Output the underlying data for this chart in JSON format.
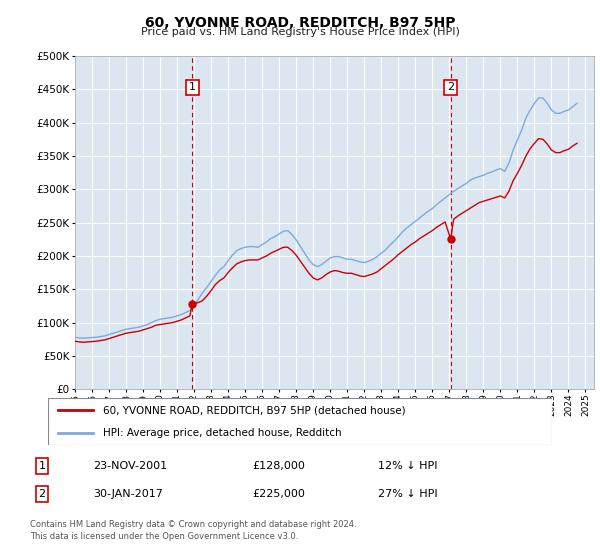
{
  "title": "60, YVONNE ROAD, REDDITCH, B97 5HP",
  "subtitle": "Price paid vs. HM Land Registry's House Price Index (HPI)",
  "ylim": [
    0,
    500000
  ],
  "yticks": [
    0,
    50000,
    100000,
    150000,
    200000,
    250000,
    300000,
    350000,
    400000,
    450000,
    500000
  ],
  "xlim_start": 1995.0,
  "xlim_end": 2025.5,
  "background_color": "#dce6f1",
  "grid_color": "#ffffff",
  "hpi_color": "#7daadc",
  "price_color": "#cc0000",
  "vline_color": "#cc0000",
  "marker1_x": 2001.9,
  "marker1_label": "1",
  "marker1_price": 128000,
  "marker1_date": "23-NOV-2001",
  "marker1_pct": "12% ↓ HPI",
  "marker2_x": 2017.08,
  "marker2_label": "2",
  "marker2_price": 225000,
  "marker2_date": "30-JAN-2017",
  "marker2_pct": "27% ↓ HPI",
  "legend_line1": "60, YVONNE ROAD, REDDITCH, B97 5HP (detached house)",
  "legend_line2": "HPI: Average price, detached house, Redditch",
  "footnote": "Contains HM Land Registry data © Crown copyright and database right 2024.\nThis data is licensed under the Open Government Licence v3.0.",
  "hpi_data_x": [
    1995.0,
    1995.25,
    1995.5,
    1995.75,
    1996.0,
    1996.25,
    1996.5,
    1996.75,
    1997.0,
    1997.25,
    1997.5,
    1997.75,
    1998.0,
    1998.25,
    1998.5,
    1998.75,
    1999.0,
    1999.25,
    1999.5,
    1999.75,
    2000.0,
    2000.25,
    2000.5,
    2000.75,
    2001.0,
    2001.25,
    2001.5,
    2001.75,
    2002.0,
    2002.25,
    2002.5,
    2002.75,
    2003.0,
    2003.25,
    2003.5,
    2003.75,
    2004.0,
    2004.25,
    2004.5,
    2004.75,
    2005.0,
    2005.25,
    2005.5,
    2005.75,
    2006.0,
    2006.25,
    2006.5,
    2006.75,
    2007.0,
    2007.25,
    2007.5,
    2007.75,
    2008.0,
    2008.25,
    2008.5,
    2008.75,
    2009.0,
    2009.25,
    2009.5,
    2009.75,
    2010.0,
    2010.25,
    2010.5,
    2010.75,
    2011.0,
    2011.25,
    2011.5,
    2011.75,
    2012.0,
    2012.25,
    2012.5,
    2012.75,
    2013.0,
    2013.25,
    2013.5,
    2013.75,
    2014.0,
    2014.25,
    2014.5,
    2014.75,
    2015.0,
    2015.25,
    2015.5,
    2015.75,
    2016.0,
    2016.25,
    2016.5,
    2016.75,
    2017.0,
    2017.25,
    2017.5,
    2017.75,
    2018.0,
    2018.25,
    2018.5,
    2018.75,
    2019.0,
    2019.25,
    2019.5,
    2019.75,
    2020.0,
    2020.25,
    2020.5,
    2020.75,
    2021.0,
    2021.25,
    2021.5,
    2021.75,
    2022.0,
    2022.25,
    2022.5,
    2022.75,
    2023.0,
    2023.25,
    2023.5,
    2023.75,
    2024.0,
    2024.25,
    2024.5
  ],
  "hpi_data_y": [
    78000,
    77000,
    76500,
    77000,
    77500,
    78000,
    79000,
    80000,
    82000,
    84000,
    86000,
    88000,
    90000,
    91000,
    92000,
    93000,
    95000,
    97000,
    100000,
    103000,
    105000,
    106000,
    107000,
    108000,
    110000,
    112000,
    115000,
    118000,
    125000,
    135000,
    145000,
    153000,
    162000,
    171000,
    179000,
    184000,
    193000,
    201000,
    208000,
    211000,
    213000,
    214000,
    214000,
    213000,
    217000,
    221000,
    226000,
    229000,
    233000,
    237000,
    238000,
    232000,
    224000,
    214000,
    204000,
    194000,
    187000,
    184000,
    187000,
    192000,
    197000,
    199000,
    199000,
    197000,
    195000,
    195000,
    193000,
    191000,
    190000,
    192000,
    195000,
    199000,
    204000,
    209000,
    216000,
    222000,
    229000,
    236000,
    242000,
    247000,
    252000,
    257000,
    262000,
    267000,
    271000,
    277000,
    282000,
    287000,
    292000,
    297000,
    301000,
    305000,
    309000,
    314000,
    317000,
    319000,
    321000,
    324000,
    326000,
    329000,
    331000,
    327000,
    339000,
    359000,
    374000,
    389000,
    407000,
    419000,
    429000,
    437000,
    437000,
    429000,
    419000,
    414000,
    414000,
    417000,
    419000,
    424000,
    429000
  ],
  "price_data_x": [
    1995.0,
    1995.25,
    1995.5,
    1995.75,
    1996.0,
    1996.25,
    1996.5,
    1996.75,
    1997.0,
    1997.25,
    1997.5,
    1997.75,
    1998.0,
    1998.25,
    1998.5,
    1998.75,
    1999.0,
    1999.25,
    1999.5,
    1999.75,
    2000.0,
    2000.25,
    2000.5,
    2000.75,
    2001.0,
    2001.25,
    2001.5,
    2001.75,
    2001.9,
    2001.9,
    2002.25,
    2002.5,
    2002.75,
    2003.0,
    2003.25,
    2003.5,
    2003.75,
    2004.0,
    2004.25,
    2004.5,
    2004.75,
    2005.0,
    2005.25,
    2005.5,
    2005.75,
    2006.0,
    2006.25,
    2006.5,
    2006.75,
    2007.0,
    2007.25,
    2007.5,
    2007.75,
    2008.0,
    2008.25,
    2008.5,
    2008.75,
    2009.0,
    2009.25,
    2009.5,
    2009.75,
    2010.0,
    2010.25,
    2010.5,
    2010.75,
    2011.0,
    2011.25,
    2011.5,
    2011.75,
    2012.0,
    2012.25,
    2012.5,
    2012.75,
    2013.0,
    2013.25,
    2013.5,
    2013.75,
    2014.0,
    2014.25,
    2014.5,
    2014.75,
    2015.0,
    2015.25,
    2015.5,
    2015.75,
    2016.0,
    2016.25,
    2016.5,
    2016.75,
    2017.08,
    2017.08,
    2017.25,
    2017.5,
    2017.75,
    2018.0,
    2018.25,
    2018.5,
    2018.75,
    2019.0,
    2019.25,
    2019.5,
    2019.75,
    2020.0,
    2020.25,
    2020.5,
    2020.75,
    2021.0,
    2021.25,
    2021.5,
    2021.75,
    2022.0,
    2022.25,
    2022.5,
    2022.75,
    2023.0,
    2023.25,
    2023.5,
    2023.75,
    2024.0,
    2024.25,
    2024.5
  ],
  "price_data_y": [
    72000,
    71000,
    70500,
    71000,
    71500,
    72000,
    73000,
    74000,
    76000,
    78000,
    80000,
    82000,
    84000,
    85000,
    86000,
    87000,
    89000,
    91000,
    93000,
    96000,
    97000,
    98000,
    99000,
    100000,
    102000,
    104000,
    107000,
    110000,
    128000,
    128000,
    130000,
    133000,
    140000,
    148000,
    157000,
    163000,
    167000,
    175000,
    182000,
    188000,
    191000,
    193000,
    194000,
    194000,
    194000,
    197000,
    200000,
    204000,
    207000,
    210000,
    213000,
    213000,
    208000,
    201000,
    192000,
    183000,
    174000,
    167000,
    164000,
    167000,
    172000,
    176000,
    178000,
    177000,
    175000,
    174000,
    174000,
    172000,
    170000,
    169000,
    171000,
    173000,
    176000,
    181000,
    186000,
    191000,
    196000,
    202000,
    207000,
    212000,
    217000,
    221000,
    226000,
    230000,
    234000,
    238000,
    243000,
    247000,
    251000,
    225000,
    225000,
    255000,
    260000,
    264000,
    268000,
    272000,
    276000,
    280000,
    282000,
    284000,
    286000,
    288000,
    290000,
    287000,
    297000,
    313000,
    324000,
    336000,
    350000,
    361000,
    369000,
    376000,
    375000,
    368000,
    359000,
    355000,
    355000,
    358000,
    360000,
    365000,
    369000
  ]
}
